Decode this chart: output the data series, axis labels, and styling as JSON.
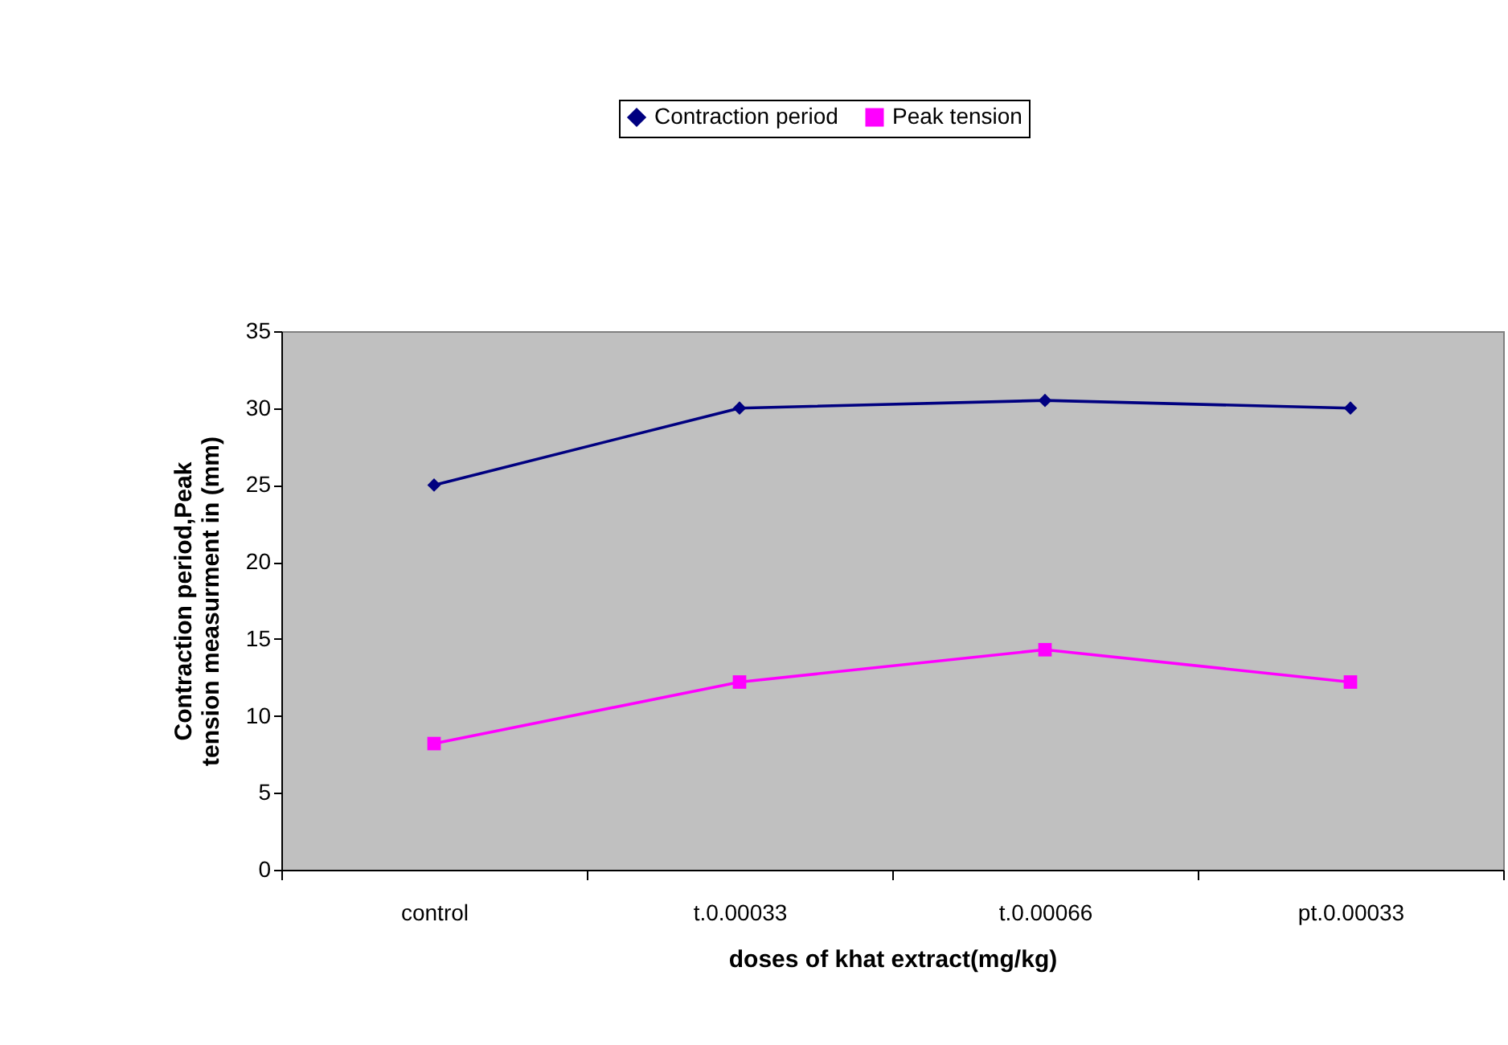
{
  "chart_data": {
    "type": "line",
    "xlabel": "doses of khat extract(mg/kg)",
    "ylabel": "Contraction period,Peak tension measurment in (mm)",
    "categories": [
      "control",
      "t.0.00033",
      "t.0.00066",
      "pt.0.00033"
    ],
    "series": [
      {
        "name": "Contraction period",
        "color": "#000080",
        "marker": "diamond",
        "values": [
          25,
          30,
          30.5,
          30
        ]
      },
      {
        "name": "Peak tension",
        "color": "#ff00ff",
        "marker": "square",
        "values": [
          8.2,
          12.2,
          14.3,
          12.2
        ]
      }
    ],
    "ylim": [
      0,
      35
    ],
    "yticks": [
      0,
      5,
      10,
      15,
      20,
      25,
      30,
      35
    ],
    "grid": false,
    "legend": "top",
    "line_style": "solid"
  }
}
